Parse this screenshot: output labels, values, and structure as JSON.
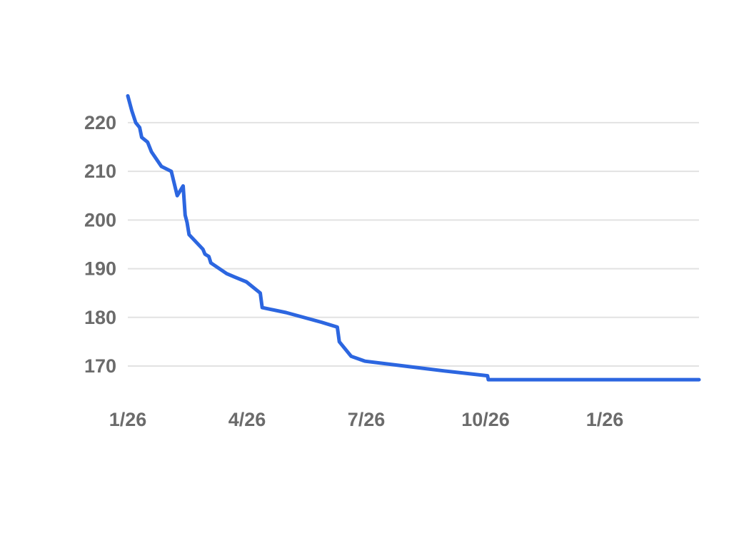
{
  "chart_data": {
    "type": "line",
    "title": "",
    "xlabel": "",
    "ylabel": "",
    "x_ticks": [
      "1/26",
      "4/26",
      "7/26",
      "10/26",
      "1/26"
    ],
    "y_ticks": [
      170,
      180,
      190,
      200,
      210,
      220
    ],
    "xlim": [
      0,
      14.45
    ],
    "ylim": [
      165.6,
      226
    ],
    "grid": "horizontal",
    "legend": "none",
    "series": [
      {
        "color": "#2c66e0",
        "points": [
          [
            0.0,
            225.5
          ],
          [
            0.1,
            222.5
          ],
          [
            0.2,
            220.0
          ],
          [
            0.3,
            219.0
          ],
          [
            0.35,
            217.0
          ],
          [
            0.5,
            216.0
          ],
          [
            0.6,
            214.0
          ],
          [
            0.85,
            211.0
          ],
          [
            1.1,
            210.0
          ],
          [
            1.25,
            205.0
          ],
          [
            1.4,
            207.0
          ],
          [
            1.45,
            201.0
          ],
          [
            1.5,
            199.5
          ],
          [
            1.55,
            197.0
          ],
          [
            1.9,
            194.0
          ],
          [
            1.95,
            193.0
          ],
          [
            2.05,
            192.5
          ],
          [
            2.1,
            191.2
          ],
          [
            2.5,
            189.0
          ],
          [
            2.7,
            188.3
          ],
          [
            3.0,
            187.3
          ],
          [
            3.35,
            185.0
          ],
          [
            3.4,
            182.0
          ],
          [
            4.0,
            181.0
          ],
          [
            4.9,
            179.0
          ],
          [
            5.3,
            178.0
          ],
          [
            5.35,
            175.0
          ],
          [
            5.65,
            172.0
          ],
          [
            6.0,
            171.0
          ],
          [
            7.0,
            170.0
          ],
          [
            8.0,
            169.0
          ],
          [
            9.1,
            168.0
          ],
          [
            9.12,
            167.2
          ],
          [
            14.45,
            167.2
          ]
        ]
      }
    ]
  }
}
